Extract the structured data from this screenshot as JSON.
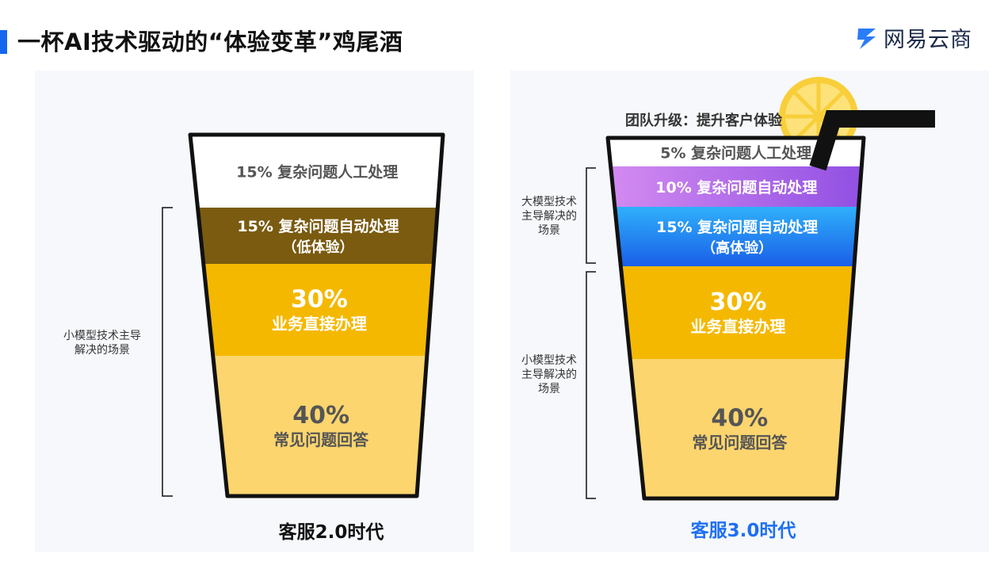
{
  "header": {
    "title": "一杯AI技术驱动的“体验变革”鸡尾酒",
    "brand_name": "网易云商",
    "accent_color": "#1565f0"
  },
  "left_cup": {
    "era_label": "客服2.0时代",
    "bracket_label": "小模型技术主导\n解决的场景",
    "layers": [
      {
        "percent": "15%",
        "text": "复杂问题人工处理",
        "sub": "",
        "color": "#ffffff",
        "share": 15
      },
      {
        "percent": "15%",
        "text": "复杂问题自动处理",
        "sub": "（低体验）",
        "color": "#7a5b10",
        "share": 15
      },
      {
        "percent": "30%",
        "text": "业务直接办理",
        "sub": "",
        "color": "#f5b800",
        "share": 30
      },
      {
        "percent": "40%",
        "text": "常见问题回答",
        "sub": "",
        "color": "#fcd56e",
        "share": 40
      }
    ]
  },
  "right_cup": {
    "era_label": "客服3.0时代",
    "era_color": "#1e6ff2",
    "upgrade_label": "团队升级：提升客户体验",
    "upper_bracket_label": "大模型技术\n主导解决的\n场景",
    "lower_bracket_label": "小模型技术\n主导解决的\n场景",
    "layers": [
      {
        "percent": "5%",
        "text": "复杂问题人工处理",
        "sub": "",
        "color": "#ffffff",
        "share": 5
      },
      {
        "percent": "10%",
        "text": "复杂问题自动处理",
        "sub": "",
        "color": "#b268e8",
        "share": 10
      },
      {
        "percent": "15%",
        "text": "复杂问题自动处理",
        "sub": "（高体验）",
        "color": "#1f8ff5",
        "share": 15
      },
      {
        "percent": "30%",
        "text": "业务直接办理",
        "sub": "",
        "color": "#f5b800",
        "share": 30
      },
      {
        "percent": "40%",
        "text": "常见问题回答",
        "sub": "",
        "color": "#fcd56e",
        "share": 40
      }
    ],
    "garnish_icons": [
      "lemon-slice-icon",
      "straw-icon"
    ]
  }
}
